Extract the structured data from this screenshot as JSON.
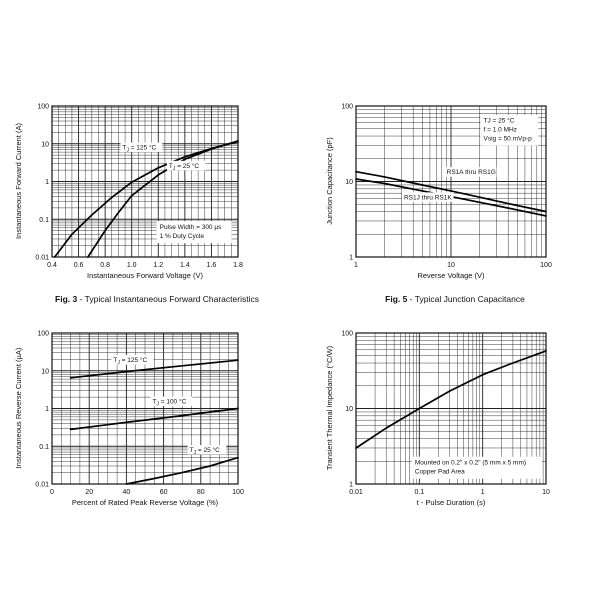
{
  "chart_data": [
    {
      "type": "line",
      "caption_prefix": "Fig. 3",
      "caption_text": "Typical Instantaneous Forward Characteristics",
      "xlabel": "Instantaneous Forward Voltage (V)",
      "ylabel": "Instantaneous Forward Current (A)",
      "x_scale": "linear",
      "y_scale": "log",
      "xlim": [
        0.4,
        1.8
      ],
      "ylim": [
        0.01,
        100
      ],
      "x_ticks": [
        {
          "v": 0.4,
          "label": "0.4"
        },
        {
          "v": 0.6,
          "label": "0.6"
        },
        {
          "v": 0.8,
          "label": "0.8"
        },
        {
          "v": 1.0,
          "label": "1.0"
        },
        {
          "v": 1.2,
          "label": "1.2"
        },
        {
          "v": 1.4,
          "label": "1.4"
        },
        {
          "v": 1.6,
          "label": "1.6"
        },
        {
          "v": 1.8,
          "label": "1.8"
        }
      ],
      "y_ticks": [
        {
          "v": 0.01,
          "label": "0.01"
        },
        {
          "v": 0.1,
          "label": "0.1"
        },
        {
          "v": 1,
          "label": "1"
        },
        {
          "v": 10,
          "label": "10"
        },
        {
          "v": 100,
          "label": "100"
        }
      ],
      "x_minor_per_major": 4,
      "grid": true,
      "series": [
        {
          "name": "TJ = 125 °C",
          "x": [
            0.42,
            0.55,
            0.7,
            0.85,
            1.0,
            1.2,
            1.4,
            1.6,
            1.8
          ],
          "y": [
            0.01,
            0.04,
            0.13,
            0.38,
            0.95,
            2.3,
            4.5,
            7.5,
            11.5
          ]
        },
        {
          "name": "TJ = 25 °C",
          "x": [
            0.67,
            0.8,
            0.9,
            1.0,
            1.2,
            1.4,
            1.6,
            1.8
          ],
          "y": [
            0.01,
            0.05,
            0.15,
            0.42,
            1.5,
            3.9,
            7.2,
            11.8
          ]
        }
      ],
      "labels": [
        {
          "sub": "J",
          "pre": "T",
          "post": " = 125 °C",
          "x": 0.93,
          "y": 7
        },
        {
          "sub": "J",
          "pre": "T",
          "post": " = 25 °C",
          "x": 1.28,
          "y": 2.3
        }
      ],
      "notes": [
        "Pulse Width = 300 µs",
        "1 % Duty Cycle"
      ],
      "notes_anchor": {
        "x": 1.21,
        "y": 0.055
      }
    },
    {
      "type": "line",
      "caption_prefix": "Fig. 5",
      "caption_text": "Typical Junction Capacitance",
      "xlabel": "Reverse Voltage (V)",
      "ylabel": "Junction Capacitance (pF)",
      "x_scale": "log",
      "y_scale": "log",
      "xlim": [
        1,
        100
      ],
      "ylim": [
        1,
        100
      ],
      "x_ticks": [
        {
          "v": 1,
          "label": "1"
        },
        {
          "v": 10,
          "label": "10"
        },
        {
          "v": 100,
          "label": "100"
        }
      ],
      "y_ticks": [
        {
          "v": 1,
          "label": "1"
        },
        {
          "v": 10,
          "label": "10"
        },
        {
          "v": 100,
          "label": "100"
        }
      ],
      "grid": true,
      "series": [
        {
          "name": "RS1A thru RS1G",
          "x": [
            1,
            2,
            5,
            10,
            20,
            50,
            100
          ],
          "y": [
            13.5,
            11.5,
            9.0,
            7.5,
            6.2,
            4.8,
            4.0
          ]
        },
        {
          "name": "RS1J thru RS1K",
          "x": [
            1,
            2,
            5,
            10,
            20,
            50,
            100
          ],
          "y": [
            10.8,
            9.4,
            7.5,
            6.3,
            5.3,
            4.2,
            3.5
          ]
        }
      ],
      "labels": [
        {
          "text": "RS1A thru RS1G",
          "x": 9,
          "y": 12.5
        },
        {
          "text": "RS1J thru RS1K",
          "x": 3.2,
          "y": 5.8
        }
      ],
      "notes": [
        "TJ = 25 °C",
        "f = 1.0 MHz",
        "Vsig = 50 mVp-p"
      ],
      "notes_anchor": {
        "x": 22,
        "y": 60
      }
    },
    {
      "type": "line",
      "caption_prefix": "",
      "caption_text": "",
      "xlabel": "Percent of Rated Peak Reverse Voltage (%)",
      "ylabel": "Instantaneous Reverse Current (µA)",
      "x_scale": "linear",
      "y_scale": "log",
      "xlim": [
        0,
        100
      ],
      "ylim": [
        0.01,
        100
      ],
      "x_ticks": [
        {
          "v": 0,
          "label": "0"
        },
        {
          "v": 20,
          "label": "20"
        },
        {
          "v": 40,
          "label": "40"
        },
        {
          "v": 60,
          "label": "60"
        },
        {
          "v": 80,
          "label": "80"
        },
        {
          "v": 100,
          "label": "100"
        }
      ],
      "y_ticks": [
        {
          "v": 0.01,
          "label": "0.01"
        },
        {
          "v": 0.1,
          "label": "0.1"
        },
        {
          "v": 1,
          "label": "1"
        },
        {
          "v": 10,
          "label": "10"
        },
        {
          "v": 100,
          "label": "100"
        }
      ],
      "x_minor_per_major": 4,
      "grid": true,
      "series": [
        {
          "name": "TJ = 125 °C",
          "x": [
            10,
            40,
            70,
            100
          ],
          "y": [
            6.5,
            9.5,
            13.5,
            19
          ]
        },
        {
          "name": "TJ = 100 °C",
          "x": [
            10,
            40,
            70,
            100
          ],
          "y": [
            0.28,
            0.43,
            0.65,
            1.0
          ]
        },
        {
          "name": "TJ = 25 °C",
          "x": [
            40,
            55,
            70,
            85,
            100
          ],
          "y": [
            0.01,
            0.014,
            0.02,
            0.03,
            0.05
          ]
        }
      ],
      "labels": [
        {
          "sub": "J",
          "pre": "T",
          "post": " = 125 °C",
          "x": 33,
          "y": 17
        },
        {
          "sub": "J",
          "pre": "T",
          "post": " = 100 °C",
          "x": 54,
          "y": 1.35
        },
        {
          "sub": "J",
          "pre": "T",
          "post": " = 25 °C",
          "x": 74,
          "y": 0.07
        }
      ]
    },
    {
      "type": "line",
      "caption_prefix": "",
      "caption_text": "",
      "xlabel": "t - Pulse Duration (s)",
      "ylabel": "Transient Thermal Impedance (°C/W)",
      "x_scale": "log",
      "y_scale": "log",
      "xlim": [
        0.01,
        10
      ],
      "ylim": [
        1,
        100
      ],
      "x_ticks": [
        {
          "v": 0.01,
          "label": "0.01"
        },
        {
          "v": 0.1,
          "label": "0.1"
        },
        {
          "v": 1,
          "label": "1"
        },
        {
          "v": 10,
          "label": "10"
        }
      ],
      "y_ticks": [
        {
          "v": 1,
          "label": "1"
        },
        {
          "v": 10,
          "label": "10"
        },
        {
          "v": 100,
          "label": "100"
        }
      ],
      "grid": true,
      "series": [
        {
          "name": "",
          "x": [
            0.01,
            0.03,
            0.1,
            0.3,
            1,
            3,
            10
          ],
          "y": [
            3.0,
            5.5,
            10,
            17,
            28,
            40,
            58
          ]
        }
      ],
      "labels": [],
      "notes": [
        "Mounted on 0.2\" x 0.2\" (5 mm x 5 mm)",
        "Copper Pad Area"
      ],
      "notes_anchor": {
        "x": 0.085,
        "y": 1.8
      }
    }
  ]
}
